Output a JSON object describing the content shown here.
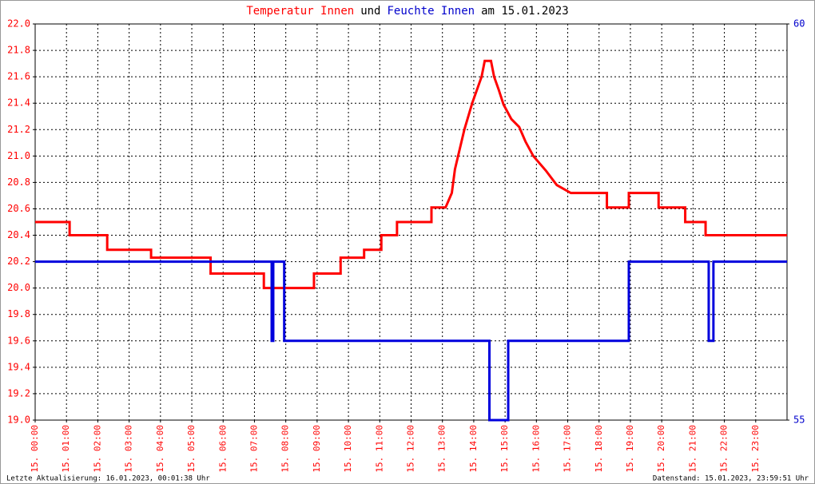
{
  "chart_data": {
    "type": "line",
    "title_parts": [
      {
        "text": "Temperatur Innen",
        "color": "#ff0000"
      },
      {
        "text": "und",
        "color": "#000000"
      },
      {
        "text": "Feuchte Innen",
        "color": "#0000cc"
      },
      {
        "text": "am 15.01.2023",
        "color": "#000000"
      }
    ],
    "xlim": [
      0,
      24
    ],
    "xticks": [
      {
        "value": 0,
        "label": "15. 00:00"
      },
      {
        "value": 1,
        "label": "15. 01:00"
      },
      {
        "value": 2,
        "label": "15. 02:00"
      },
      {
        "value": 3,
        "label": "15. 03:00"
      },
      {
        "value": 4,
        "label": "15. 04:00"
      },
      {
        "value": 5,
        "label": "15. 05:00"
      },
      {
        "value": 6,
        "label": "15. 06:00"
      },
      {
        "value": 7,
        "label": "15. 07:00"
      },
      {
        "value": 8,
        "label": "15. 08:00"
      },
      {
        "value": 9,
        "label": "15. 09:00"
      },
      {
        "value": 10,
        "label": "15. 10:00"
      },
      {
        "value": 11,
        "label": "15. 11:00"
      },
      {
        "value": 12,
        "label": "15. 12:00"
      },
      {
        "value": 13,
        "label": "15. 13:00"
      },
      {
        "value": 14,
        "label": "15. 14:00"
      },
      {
        "value": 15,
        "label": "15. 15:00"
      },
      {
        "value": 16,
        "label": "15. 16:00"
      },
      {
        "value": 17,
        "label": "15. 17:00"
      },
      {
        "value": 18,
        "label": "15. 18:00"
      },
      {
        "value": 19,
        "label": "15. 19:00"
      },
      {
        "value": 20,
        "label": "15. 20:00"
      },
      {
        "value": 21,
        "label": "15. 21:00"
      },
      {
        "value": 22,
        "label": "15. 22:00"
      },
      {
        "value": 23,
        "label": "15. 23:00"
      }
    ],
    "ylim": [
      19,
      22
    ],
    "yticks": [
      {
        "value": 19,
        "label": "19.0"
      },
      19.2,
      19.4,
      19.6,
      19.8,
      {
        "value": 20,
        "label": "20.0"
      },
      20.2,
      20.4,
      20.6,
      20.8,
      {
        "value": 21,
        "label": "21.0"
      },
      21.2,
      21.4,
      21.6,
      21.8,
      {
        "value": 22,
        "label": "22.0"
      }
    ],
    "y2lim": [
      55,
      60
    ],
    "y2ticks": [
      55,
      60
    ],
    "ytick_color": "#ff0000",
    "y2tick_color": "#0000cc",
    "xtick_color": "#ff0000",
    "grid": true,
    "series": [
      {
        "color": "#ff0000",
        "axis": "y",
        "x": [
          0,
          1.1,
          1.1,
          2.3,
          2.3,
          3.7,
          3.7,
          5.6,
          5.6,
          7.3,
          7.3,
          8.9,
          8.9,
          9.75,
          9.75,
          10.5,
          10.5,
          11.05,
          11.05,
          11.55,
          11.55,
          12.65,
          12.65,
          13.1,
          13.3,
          13.4,
          13.5,
          13.6,
          13.7,
          13.8,
          13.95,
          14.1,
          14.25,
          14.35,
          14.55,
          14.65,
          14.8,
          14.95,
          15.2,
          15.45,
          15.65,
          15.9,
          16.3,
          16.65,
          17.1,
          18.25,
          18.25,
          18.95,
          18.95,
          19.9,
          19.9,
          20.75,
          20.75,
          21.4,
          21.4,
          24
        ],
        "values": [
          20.5,
          20.5,
          20.4,
          20.4,
          20.29,
          20.29,
          20.23,
          20.23,
          20.11,
          20.11,
          20.0,
          20.0,
          20.11,
          20.11,
          20.23,
          20.23,
          20.29,
          20.29,
          20.4,
          20.4,
          20.5,
          20.5,
          20.61,
          20.61,
          20.72,
          20.9,
          21.0,
          21.1,
          21.2,
          21.28,
          21.4,
          21.5,
          21.6,
          21.72,
          21.72,
          21.6,
          21.5,
          21.39,
          21.28,
          21.22,
          21.11,
          21.0,
          20.89,
          20.78,
          20.72,
          20.72,
          20.61,
          20.61,
          20.72,
          20.72,
          20.61,
          20.61,
          20.5,
          20.5,
          20.4,
          20.4
        ]
      },
      {
        "color": "#0000dd",
        "axis": "y2",
        "x": [
          0,
          7.55,
          7.55,
          7.6,
          7.6,
          7.95,
          7.95,
          14.5,
          14.5,
          15.1,
          15.1,
          18.95,
          18.95,
          21.5,
          21.5,
          21.65,
          21.65,
          24
        ],
        "values": [
          57,
          57,
          56,
          56,
          57,
          57,
          56,
          56,
          55,
          55,
          56,
          56,
          57,
          57,
          56,
          56,
          57,
          57
        ]
      }
    ]
  },
  "footer": {
    "left": "Letzte Aktualisierung: 16.01.2023, 00:01:38 Uhr",
    "right": "Datenstand: 15.01.2023, 23:59:51 Uhr"
  }
}
